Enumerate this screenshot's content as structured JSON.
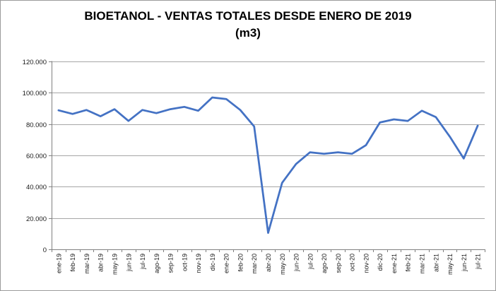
{
  "window": {
    "background": "#ffffff",
    "border_color": "#9b9b9b"
  },
  "chart_data": {
    "type": "line",
    "title": "BIOETANOL - VENTAS TOTALES DESDE ENERO DE 2019",
    "subtitle": "(m3)",
    "categories": [
      "ene-19",
      "feb-19",
      "mar-19",
      "abr-19",
      "may-19",
      "jun-19",
      "jul-19",
      "ago-19",
      "sep-19",
      "oct-19",
      "nov-19",
      "dic-19",
      "ene-20",
      "feb-20",
      "mar-20",
      "abr-20",
      "may-20",
      "jun-20",
      "jul-20",
      "ago-20",
      "sep-20",
      "oct-20",
      "nov-20",
      "dic-20",
      "ene-21",
      "feb-21",
      "mar-21",
      "abr-21",
      "may-21",
      "jun-21",
      "jul-21"
    ],
    "values": [
      88800,
      86500,
      89000,
      85000,
      89500,
      82000,
      89000,
      87000,
      89500,
      91000,
      88500,
      97000,
      96000,
      89000,
      78500,
      10500,
      42500,
      54500,
      62000,
      61000,
      62000,
      61000,
      66500,
      81000,
      83000,
      82000,
      88500,
      84500,
      72000,
      58000,
      79000
    ],
    "ylim": [
      0,
      120000
    ],
    "y_ticks": [
      0,
      20000,
      40000,
      60000,
      80000,
      100000,
      120000
    ],
    "y_tick_labels": [
      "0",
      "20.000",
      "40.000",
      "60.000",
      "80.000",
      "100.000",
      "120.000"
    ],
    "xlabel": "",
    "ylabel": "",
    "grid": true,
    "legend": "none",
    "line_color": "#4472c4",
    "gridline_color": "#a6a6a6",
    "axis_color": "#808080",
    "tick_label_color": "#1a1a1a"
  }
}
